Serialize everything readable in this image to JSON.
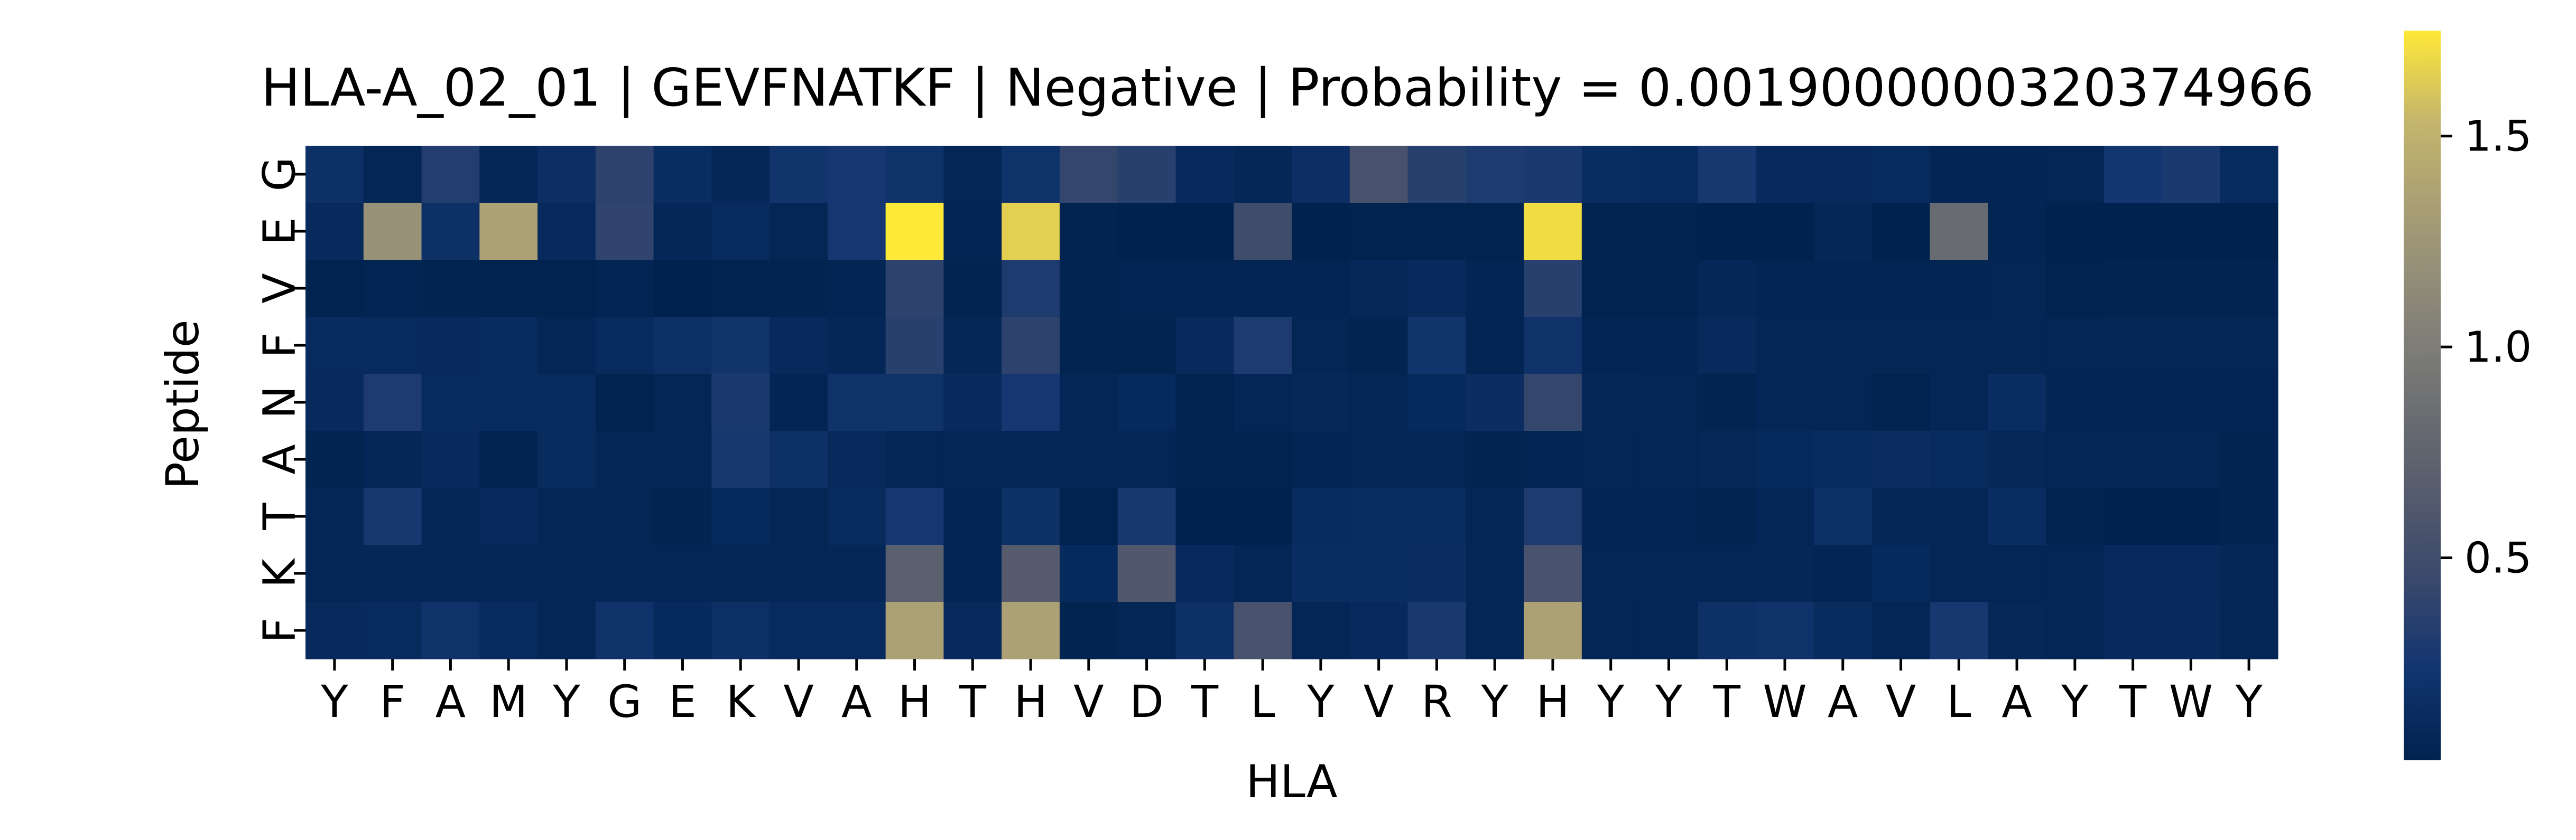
{
  "chart_data": {
    "type": "heatmap",
    "title": "HLA-A_02_01 | GEVFNATKF | Negative | Probability = 0.0019000000320374966",
    "xlabel": "HLA",
    "ylabel": "Peptide",
    "x_categories": [
      "Y",
      "F",
      "A",
      "M",
      "Y",
      "G",
      "E",
      "K",
      "V",
      "A",
      "H",
      "T",
      "H",
      "V",
      "D",
      "T",
      "L",
      "Y",
      "V",
      "R",
      "Y",
      "H",
      "Y",
      "Y",
      "T",
      "W",
      "A",
      "V",
      "L",
      "A",
      "Y",
      "T",
      "W",
      "Y"
    ],
    "y_categories": [
      "G",
      "E",
      "V",
      "F",
      "N",
      "A",
      "T",
      "K",
      "F"
    ],
    "colormap": "cividis",
    "value_range": [
      0.02,
      1.75
    ],
    "colorbar_ticks": [
      0.5,
      1.0,
      1.5
    ],
    "colorbar_tick_labels": [
      "0.5",
      "1.0",
      "1.5"
    ],
    "values": [
      [
        0.18,
        0.06,
        0.32,
        0.08,
        0.16,
        0.38,
        0.14,
        0.08,
        0.22,
        0.25,
        0.2,
        0.07,
        0.2,
        0.42,
        0.35,
        0.1,
        0.08,
        0.16,
        0.55,
        0.35,
        0.3,
        0.28,
        0.14,
        0.12,
        0.26,
        0.1,
        0.1,
        0.12,
        0.05,
        0.05,
        0.06,
        0.24,
        0.28,
        0.12
      ],
      [
        0.1,
        1.2,
        0.18,
        1.35,
        0.1,
        0.4,
        0.08,
        0.12,
        0.06,
        0.25,
        1.75,
        0.05,
        1.65,
        0.04,
        0.02,
        0.02,
        0.48,
        0.02,
        0.03,
        0.03,
        0.03,
        1.7,
        0.04,
        0.04,
        0.02,
        0.02,
        0.08,
        0.02,
        0.82,
        0.05,
        0.02,
        0.02,
        0.02,
        0.02
      ],
      [
        0.03,
        0.05,
        0.04,
        0.03,
        0.03,
        0.05,
        0.02,
        0.04,
        0.04,
        0.05,
        0.38,
        0.04,
        0.3,
        0.04,
        0.05,
        0.05,
        0.05,
        0.05,
        0.09,
        0.1,
        0.05,
        0.35,
        0.03,
        0.03,
        0.08,
        0.05,
        0.05,
        0.05,
        0.05,
        0.06,
        0.03,
        0.04,
        0.04,
        0.04
      ],
      [
        0.12,
        0.12,
        0.1,
        0.12,
        0.07,
        0.12,
        0.17,
        0.22,
        0.1,
        0.08,
        0.35,
        0.08,
        0.38,
        0.04,
        0.04,
        0.1,
        0.3,
        0.06,
        0.04,
        0.22,
        0.05,
        0.2,
        0.05,
        0.05,
        0.1,
        0.07,
        0.07,
        0.06,
        0.07,
        0.06,
        0.06,
        0.07,
        0.07,
        0.06
      ],
      [
        0.1,
        0.3,
        0.12,
        0.12,
        0.12,
        0.03,
        0.06,
        0.28,
        0.05,
        0.2,
        0.2,
        0.1,
        0.25,
        0.07,
        0.11,
        0.03,
        0.07,
        0.09,
        0.07,
        0.11,
        0.15,
        0.42,
        0.08,
        0.07,
        0.04,
        0.07,
        0.07,
        0.03,
        0.07,
        0.14,
        0.05,
        0.05,
        0.05,
        0.05
      ],
      [
        0.04,
        0.08,
        0.1,
        0.04,
        0.12,
        0.07,
        0.07,
        0.26,
        0.18,
        0.1,
        0.06,
        0.06,
        0.07,
        0.07,
        0.07,
        0.03,
        0.03,
        0.05,
        0.06,
        0.07,
        0.04,
        0.05,
        0.06,
        0.06,
        0.09,
        0.11,
        0.13,
        0.15,
        0.12,
        0.09,
        0.06,
        0.06,
        0.06,
        0.04
      ],
      [
        0.07,
        0.26,
        0.07,
        0.1,
        0.07,
        0.06,
        0.04,
        0.11,
        0.06,
        0.12,
        0.25,
        0.05,
        0.18,
        0.03,
        0.26,
        0.02,
        0.02,
        0.13,
        0.14,
        0.14,
        0.07,
        0.3,
        0.05,
        0.05,
        0.03,
        0.07,
        0.17,
        0.06,
        0.07,
        0.14,
        0.04,
        0.02,
        0.02,
        0.04
      ],
      [
        0.06,
        0.08,
        0.08,
        0.08,
        0.08,
        0.08,
        0.07,
        0.08,
        0.07,
        0.08,
        0.7,
        0.05,
        0.65,
        0.11,
        0.62,
        0.1,
        0.07,
        0.14,
        0.14,
        0.15,
        0.07,
        0.55,
        0.07,
        0.07,
        0.07,
        0.08,
        0.05,
        0.11,
        0.07,
        0.06,
        0.06,
        0.1,
        0.1,
        0.08
      ],
      [
        0.1,
        0.12,
        0.2,
        0.12,
        0.07,
        0.2,
        0.11,
        0.17,
        0.12,
        0.12,
        1.35,
        0.1,
        1.35,
        0.04,
        0.06,
        0.17,
        0.55,
        0.07,
        0.1,
        0.28,
        0.07,
        1.35,
        0.06,
        0.06,
        0.18,
        0.2,
        0.13,
        0.06,
        0.26,
        0.09,
        0.06,
        0.1,
        0.1,
        0.07
      ]
    ]
  }
}
